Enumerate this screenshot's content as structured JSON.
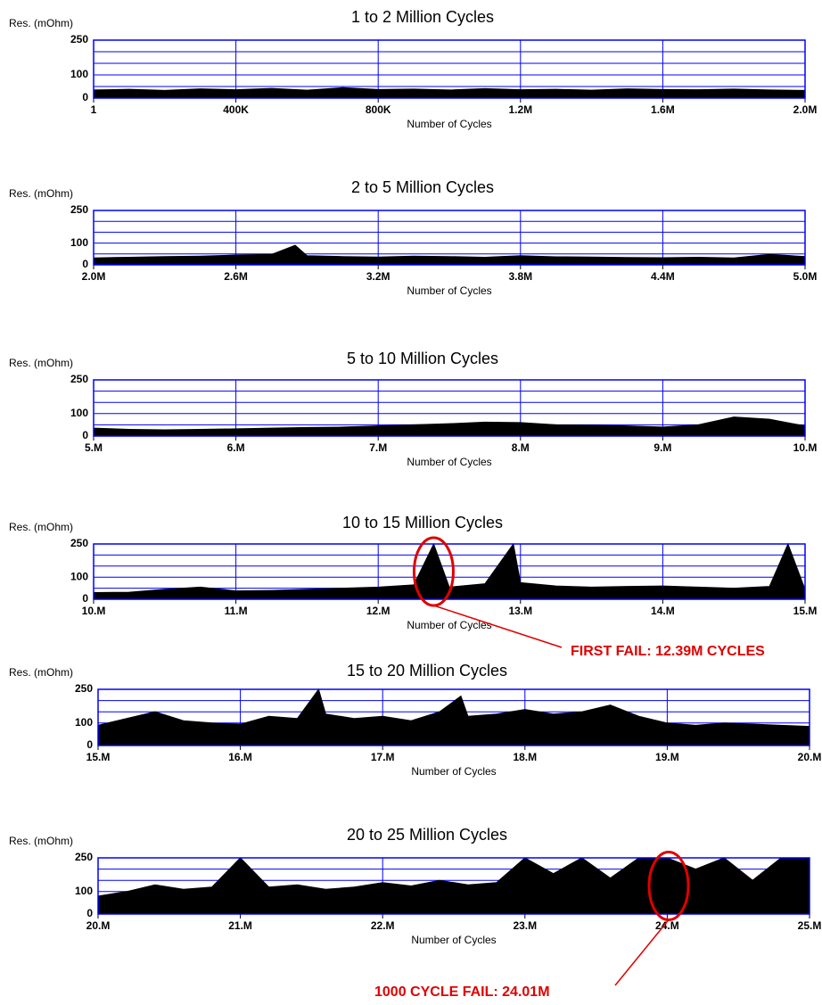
{
  "chart_data": [
    {
      "type": "area",
      "title": "1 to 2 Million Cycles",
      "ylabel": "Res. (mOhm)",
      "xlabel": "Number of Cycles",
      "color": "#000000",
      "grid_color": "#0000ff",
      "ylim": [
        0,
        250
      ],
      "yticks": [
        0,
        100,
        250
      ],
      "ygrid": [
        50,
        100,
        150,
        200,
        250
      ],
      "xlim": [
        1,
        2000000
      ],
      "xticks": [
        1,
        {
          "value": 400000,
          "label": "400K"
        },
        {
          "value": 800000,
          "label": "800K"
        },
        {
          "value": 1200000,
          "label": "1.2M"
        },
        {
          "value": 1600000,
          "label": "1.6M"
        },
        {
          "value": 2000000,
          "label": "2.0M"
        }
      ],
      "x": [
        1,
        100000,
        200000,
        300000,
        400000,
        500000,
        600000,
        700000,
        800000,
        900000,
        1000000,
        1100000,
        1200000,
        1300000,
        1400000,
        1500000,
        1600000,
        1700000,
        1800000,
        1900000,
        2000000
      ],
      "values": [
        35,
        38,
        33,
        40,
        36,
        42,
        34,
        45,
        37,
        39,
        35,
        41,
        36,
        38,
        34,
        40,
        37,
        36,
        39,
        35,
        33
      ]
    },
    {
      "type": "area",
      "title": "2 to 5 Million Cycles",
      "ylabel": "Res. (mOhm)",
      "xlabel": "Number of Cycles",
      "color": "#000000",
      "grid_color": "#0000ff",
      "ylim": [
        0,
        250
      ],
      "yticks": [
        0,
        100,
        250
      ],
      "ygrid": [
        50,
        100,
        150,
        200,
        250
      ],
      "xlim": [
        2000000,
        5000000
      ],
      "xticks": [
        {
          "value": 2000000,
          "label": "2.0M"
        },
        {
          "value": 2600000,
          "label": "2.6M"
        },
        {
          "value": 3200000,
          "label": "3.2M"
        },
        {
          "value": 3800000,
          "label": "3.8M"
        },
        {
          "value": 4400000,
          "label": "4.4M"
        },
        {
          "value": 5000000,
          "label": "5.0M"
        }
      ],
      "x": [
        2000000,
        2150000,
        2300000,
        2450000,
        2600000,
        2750000,
        2850000,
        2900000,
        3050000,
        3200000,
        3350000,
        3500000,
        3650000,
        3800000,
        3950000,
        4100000,
        4250000,
        4400000,
        4550000,
        4700000,
        4850000,
        5000000
      ],
      "values": [
        32,
        35,
        38,
        40,
        45,
        48,
        90,
        42,
        38,
        36,
        40,
        38,
        35,
        42,
        37,
        36,
        34,
        33,
        35,
        32,
        48,
        38
      ]
    },
    {
      "type": "area",
      "title": "5 to 10 Million Cycles",
      "ylabel": "Res. (mOhm)",
      "xlabel": "Number of Cycles",
      "color": "#000000",
      "grid_color": "#0000ff",
      "ylim": [
        0,
        250
      ],
      "yticks": [
        0,
        100,
        250
      ],
      "ygrid": [
        50,
        100,
        150,
        200,
        250
      ],
      "xlim": [
        5000000,
        10000000
      ],
      "xticks": [
        {
          "value": 5000000,
          "label": "5.M"
        },
        {
          "value": 6000000,
          "label": "6.M"
        },
        {
          "value": 7000000,
          "label": "7.M"
        },
        {
          "value": 8000000,
          "label": "8.M"
        },
        {
          "value": 9000000,
          "label": "9.M"
        },
        {
          "value": 10000000,
          "label": "10.M"
        }
      ],
      "x": [
        5000000,
        5250000,
        5500000,
        5750000,
        6000000,
        6250000,
        6500000,
        6750000,
        7000000,
        7250000,
        7500000,
        7750000,
        8000000,
        8250000,
        8500000,
        8750000,
        9000000,
        9250000,
        9500000,
        9750000,
        10000000
      ],
      "values": [
        35,
        30,
        28,
        30,
        32,
        35,
        38,
        40,
        45,
        50,
        55,
        62,
        60,
        50,
        48,
        45,
        40,
        50,
        85,
        75,
        45
      ]
    },
    {
      "type": "area",
      "title": "10 to 15 Million Cycles",
      "ylabel": "Res. (mOhm)",
      "xlabel": "Number of Cycles",
      "color": "#000000",
      "grid_color": "#0000ff",
      "ylim": [
        0,
        250
      ],
      "yticks": [
        0,
        100,
        250
      ],
      "ygrid": [
        50,
        100,
        150,
        200,
        250
      ],
      "xlim": [
        10000000,
        15000000
      ],
      "xticks": [
        {
          "value": 10000000,
          "label": "10.M"
        },
        {
          "value": 11000000,
          "label": "11.M"
        },
        {
          "value": 12000000,
          "label": "12.M"
        },
        {
          "value": 13000000,
          "label": "13.M"
        },
        {
          "value": 14000000,
          "label": "14.M"
        },
        {
          "value": 15000000,
          "label": "15.M"
        }
      ],
      "x": [
        10000000,
        10250000,
        10500000,
        10750000,
        11000000,
        11250000,
        11500000,
        11750000,
        12000000,
        12250000,
        12390000,
        12500000,
        12750000,
        12950000,
        13000000,
        13250000,
        13500000,
        13750000,
        14000000,
        14250000,
        14500000,
        14750000,
        14880000,
        15000000
      ],
      "values": [
        30,
        32,
        45,
        55,
        38,
        40,
        45,
        50,
        55,
        65,
        250,
        55,
        70,
        250,
        75,
        60,
        55,
        58,
        60,
        55,
        50,
        58,
        250,
        45
      ],
      "annotations": [
        {
          "text": "FIRST FAIL:  12.39M CYCLES",
          "x": 12390000
        }
      ]
    },
    {
      "type": "area",
      "title": "15 to 20 Million Cycles",
      "ylabel": "Res. (mOhm)",
      "xlabel": "Number of Cycles",
      "color": "#000000",
      "grid_color": "#0000ff",
      "ylim": [
        0,
        250
      ],
      "yticks": [
        0,
        100,
        250
      ],
      "ygrid": [
        50,
        100,
        150,
        200,
        250
      ],
      "xlim": [
        15000000,
        20000000
      ],
      "xticks": [
        {
          "value": 15000000,
          "label": "15.M"
        },
        {
          "value": 16000000,
          "label": "16.M"
        },
        {
          "value": 17000000,
          "label": "17.M"
        },
        {
          "value": 18000000,
          "label": "18.M"
        },
        {
          "value": 19000000,
          "label": "19.M"
        },
        {
          "value": 20000000,
          "label": "20.M"
        }
      ],
      "x": [
        15000000,
        15200000,
        15400000,
        15600000,
        15800000,
        16000000,
        16200000,
        16400000,
        16550000,
        16600000,
        16800000,
        17000000,
        17200000,
        17400000,
        17550000,
        17600000,
        17800000,
        18000000,
        18200000,
        18400000,
        18600000,
        18800000,
        19000000,
        19200000,
        19400000,
        19600000,
        19800000,
        20000000
      ],
      "values": [
        90,
        120,
        150,
        110,
        100,
        95,
        130,
        120,
        250,
        140,
        120,
        130,
        110,
        150,
        220,
        130,
        140,
        160,
        140,
        150,
        180,
        130,
        100,
        90,
        100,
        95,
        90,
        85
      ]
    },
    {
      "type": "area",
      "title": "20 to 25 Million Cycles",
      "ylabel": "Res. (mOhm)",
      "xlabel": "Number of Cycles",
      "color": "#000000",
      "grid_color": "#0000ff",
      "ylim": [
        0,
        250
      ],
      "yticks": [
        0,
        100,
        250
      ],
      "ygrid": [
        50,
        100,
        150,
        200,
        250
      ],
      "xlim": [
        20000000,
        25000000
      ],
      "xticks": [
        {
          "value": 20000000,
          "label": "20.M"
        },
        {
          "value": 21000000,
          "label": "21.M"
        },
        {
          "value": 22000000,
          "label": "22.M"
        },
        {
          "value": 23000000,
          "label": "23.M"
        },
        {
          "value": 24000000,
          "label": "24.M"
        },
        {
          "value": 25000000,
          "label": "25.M"
        }
      ],
      "x": [
        20000000,
        20200000,
        20400000,
        20600000,
        20800000,
        21000000,
        21200000,
        21400000,
        21600000,
        21800000,
        22000000,
        22200000,
        22400000,
        22600000,
        22800000,
        23000000,
        23200000,
        23400000,
        23600000,
        23800000,
        24000000,
        24200000,
        24400000,
        24600000,
        24800000,
        25000000
      ],
      "values": [
        80,
        100,
        130,
        110,
        120,
        250,
        120,
        130,
        110,
        120,
        140,
        125,
        150,
        130,
        140,
        250,
        180,
        250,
        160,
        250,
        250,
        200,
        250,
        150,
        250,
        250
      ],
      "annotations": [
        {
          "text": "1000 CYCLE  FAIL:  24.01M",
          "x": 24010000
        }
      ]
    }
  ]
}
